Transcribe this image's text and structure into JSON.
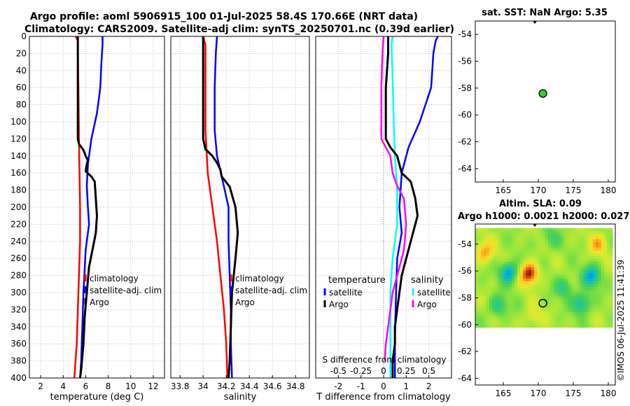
{
  "title_line1": "Argo profile: aoml 5906915_100 01-Jul-2025 58.4S 170.66E (NRT data)",
  "title_line2": "Climatology: CARS2009. Satellite-adj clim: synTS_20250701.nc (0.39d earlier)",
  "timestamp": "©IMOS 06-Jul-2025 11:41:39",
  "colors": {
    "climatology": "#ff0000",
    "satellite": "#0000ff",
    "argo": "#000000",
    "sat_salinity": "#00ffff",
    "argo_salinity": "#ff00ff",
    "argo_marker": "#33cc33"
  },
  "chart_data": [
    {
      "id": "temperature",
      "type": "line",
      "xlabel": "temperature (deg C)",
      "xlim": [
        1,
        13
      ],
      "xticks": [
        2,
        4,
        6,
        8,
        10,
        12
      ],
      "xtick_labels": [
        "2",
        "4",
        "6",
        "8",
        "10",
        "12"
      ],
      "ylim": [
        0,
        400
      ],
      "yticks": [
        0,
        20,
        40,
        60,
        80,
        100,
        120,
        140,
        160,
        180,
        200,
        220,
        240,
        260,
        280,
        300,
        320,
        340,
        360,
        380,
        400
      ],
      "ytick_labels": [
        "0",
        "20",
        "40",
        "60",
        "80",
        "100",
        "120",
        "140",
        "160",
        "180",
        "200",
        "220",
        "240",
        "260",
        "280",
        "300",
        "320",
        "340",
        "360",
        "380",
        "400"
      ],
      "grid": true,
      "legend": [
        "climatology",
        "satellite-adj. clim",
        "Argo"
      ],
      "series": [
        {
          "name": "climatology",
          "color": "#ff0000",
          "width": 2.5,
          "points": [
            [
              5.1,
              0
            ],
            [
              5.3,
              5
            ],
            [
              5.3,
              20
            ],
            [
              5.35,
              60
            ],
            [
              5.4,
              120
            ],
            [
              5.45,
              160
            ],
            [
              5.5,
              200
            ],
            [
              5.5,
              240
            ],
            [
              5.4,
              280
            ],
            [
              5.3,
              320
            ],
            [
              5.2,
              360
            ],
            [
              5.1,
              380
            ],
            [
              5.0,
              400
            ]
          ]
        },
        {
          "name": "satellite-adj. clim",
          "color": "#0000ff",
          "width": 2.5,
          "points": [
            [
              7.5,
              0
            ],
            [
              7.5,
              10
            ],
            [
              7.4,
              30
            ],
            [
              7.3,
              60
            ],
            [
              7.0,
              90
            ],
            [
              6.5,
              120
            ],
            [
              6.2,
              150
            ],
            [
              6.1,
              175
            ],
            [
              6.2,
              200
            ],
            [
              6.3,
              220
            ],
            [
              6.0,
              250
            ],
            [
              5.8,
              300
            ],
            [
              5.7,
              340
            ],
            [
              5.6,
              380
            ],
            [
              5.5,
              400
            ]
          ]
        },
        {
          "name": "Argo",
          "color": "#000000",
          "width": 3,
          "points": [
            [
              5.3,
              0
            ],
            [
              5.3,
              20
            ],
            [
              5.3,
              40
            ],
            [
              5.3,
              80
            ],
            [
              5.3,
              100
            ],
            [
              5.3,
              120
            ],
            [
              5.4,
              126
            ],
            [
              5.8,
              133
            ],
            [
              6.0,
              140
            ],
            [
              6.2,
              145
            ],
            [
              6.1,
              150
            ],
            [
              6.0,
              158
            ],
            [
              6.5,
              164
            ],
            [
              6.8,
              170
            ],
            [
              6.9,
              190
            ],
            [
              7.0,
              210
            ],
            [
              6.9,
              230
            ],
            [
              6.6,
              250
            ],
            [
              6.3,
              270
            ],
            [
              6.1,
              300
            ],
            [
              5.9,
              330
            ],
            [
              5.8,
              360
            ],
            [
              5.6,
              390
            ],
            [
              5.5,
              400
            ]
          ]
        }
      ]
    },
    {
      "id": "salinity",
      "type": "line",
      "xlabel": "salinity",
      "xlim": [
        33.72,
        34.92
      ],
      "xticks": [
        33.8,
        34.0,
        34.2,
        34.4,
        34.6,
        34.8
      ],
      "xtick_labels": [
        "33.8",
        "34",
        "34.2",
        "34.4",
        "34.6",
        "34.8"
      ],
      "ylim": [
        0,
        400
      ],
      "grid": true,
      "legend": [
        "climatology",
        "satellite-adj. clim",
        "Argo"
      ],
      "series": [
        {
          "name": "climatology",
          "color": "#ff0000",
          "width": 2.5,
          "points": [
            [
              34.0,
              0
            ],
            [
              34.02,
              10
            ],
            [
              34.02,
              60
            ],
            [
              34.02,
              110
            ],
            [
              34.04,
              160
            ],
            [
              34.08,
              200
            ],
            [
              34.12,
              240
            ],
            [
              34.15,
              280
            ],
            [
              34.18,
              320
            ],
            [
              34.2,
              360
            ],
            [
              34.21,
              400
            ]
          ]
        },
        {
          "name": "satellite-adj. clim",
          "color": "#0000ff",
          "width": 2.5,
          "points": [
            [
              34.12,
              0
            ],
            [
              34.11,
              20
            ],
            [
              34.1,
              60
            ],
            [
              34.1,
              110
            ],
            [
              34.12,
              140
            ],
            [
              34.17,
              170
            ],
            [
              34.22,
              200
            ],
            [
              34.22,
              240
            ],
            [
              34.23,
              280
            ],
            [
              34.24,
              320
            ],
            [
              34.24,
              360
            ],
            [
              34.25,
              400
            ]
          ]
        },
        {
          "name": "Argo",
          "color": "#000000",
          "width": 3,
          "points": [
            [
              34.0,
              0
            ],
            [
              34.0,
              20
            ],
            [
              34.0,
              80
            ],
            [
              34.0,
              120
            ],
            [
              34.02,
              132
            ],
            [
              34.08,
              140
            ],
            [
              34.12,
              148
            ],
            [
              34.15,
              156
            ],
            [
              34.16,
              164
            ],
            [
              34.23,
              176
            ],
            [
              34.28,
              200
            ],
            [
              34.3,
              230
            ],
            [
              34.28,
              260
            ],
            [
              34.25,
              300
            ],
            [
              34.24,
              340
            ],
            [
              34.23,
              380
            ],
            [
              34.22,
              400
            ]
          ]
        }
      ]
    },
    {
      "id": "difference",
      "type": "line",
      "xlabel": "T difference from climatology",
      "xlabel2": "S difference from climatology",
      "xlim": [
        -3,
        3
      ],
      "xticks": [
        -2,
        -1,
        0,
        1,
        2
      ],
      "xtick_labels": [
        "-2",
        "-1",
        "0",
        "1",
        "2"
      ],
      "xticks2": [
        -2,
        -1,
        0,
        1,
        2
      ],
      "xtick2_labels": [
        "-0.5",
        "-0.25",
        "0",
        "0.25",
        "0.5"
      ],
      "ylim": [
        0,
        400
      ],
      "grid": true,
      "legend_temperature": {
        "title": "temperature",
        "items": [
          "satellite",
          "Argo"
        ]
      },
      "legend_salinity": {
        "title": "salinity",
        "items": [
          "satellite",
          "Argo"
        ]
      },
      "series": [
        {
          "name": "T satellite",
          "color": "#0000ff",
          "width": 2.5,
          "points": [
            [
              2.4,
              0
            ],
            [
              2.3,
              5
            ],
            [
              2.2,
              20
            ],
            [
              2.1,
              60
            ],
            [
              1.6,
              100
            ],
            [
              1.1,
              130
            ],
            [
              0.8,
              160
            ],
            [
              0.7,
              200
            ],
            [
              0.8,
              230
            ],
            [
              0.6,
              260
            ],
            [
              0.55,
              300
            ],
            [
              0.5,
              350
            ],
            [
              0.5,
              400
            ]
          ]
        },
        {
          "name": "S satellite",
          "color": "#00ffff",
          "width": 2.5,
          "points": [
            [
              0.4,
              0
            ],
            [
              0.35,
              10
            ],
            [
              0.4,
              50
            ],
            [
              0.45,
              100
            ],
            [
              0.5,
              140
            ],
            [
              0.6,
              180
            ],
            [
              0.6,
              220
            ],
            [
              0.4,
              260
            ],
            [
              0.3,
              300
            ],
            [
              0.3,
              350
            ],
            [
              0.3,
              400
            ]
          ]
        },
        {
          "name": "S Argo",
          "color": "#ff00ff",
          "width": 2.5,
          "points": [
            [
              0,
              0
            ],
            [
              -0.05,
              20
            ],
            [
              -0.1,
              60
            ],
            [
              -0.1,
              100
            ],
            [
              -0.1,
              120
            ],
            [
              0.1,
              130
            ],
            [
              0.3,
              140
            ],
            [
              0.4,
              160
            ],
            [
              0.6,
              175
            ],
            [
              0.9,
              190
            ],
            [
              1.0,
              220
            ],
            [
              0.9,
              250
            ],
            [
              0.6,
              280
            ],
            [
              0.4,
              300
            ],
            [
              0.3,
              320
            ],
            [
              0.2,
              340
            ],
            [
              0.1,
              360
            ],
            [
              0.05,
              380
            ]
          ]
        },
        {
          "name": "T Argo",
          "color": "#000000",
          "width": 3,
          "points": [
            [
              0.2,
              0
            ],
            [
              0.2,
              20
            ],
            [
              0.1,
              60
            ],
            [
              0.1,
              100
            ],
            [
              0.1,
              120
            ],
            [
              0.3,
              130
            ],
            [
              0.6,
              140
            ],
            [
              0.7,
              150
            ],
            [
              0.8,
              160
            ],
            [
              1.2,
              170
            ],
            [
              1.4,
              190
            ],
            [
              1.5,
              210
            ],
            [
              1.3,
              230
            ],
            [
              1.0,
              260
            ],
            [
              0.8,
              280
            ],
            [
              0.7,
              300
            ],
            [
              0.6,
              320
            ],
            [
              0.5,
              340
            ],
            [
              0.5,
              360
            ],
            [
              0.4,
              380
            ],
            [
              0.4,
              400
            ]
          ]
        }
      ]
    },
    {
      "id": "sst_map",
      "type": "scatter",
      "title": "sat. SST: NaN Argo: 5.35",
      "xlim": [
        161,
        181
      ],
      "ylim": [
        -65,
        -53
      ],
      "xticks": [
        165,
        170,
        175,
        180
      ],
      "xtick_labels": [
        "165",
        "170",
        "175",
        "180"
      ],
      "yticks": [
        -54,
        -56,
        -58,
        -60,
        -62,
        -64
      ],
      "ytick_labels": [
        "-54",
        "-56",
        "-58",
        "-60",
        "-62",
        "-64"
      ],
      "points": [
        {
          "x": 170.66,
          "y": -58.4,
          "label": "Argo"
        }
      ]
    },
    {
      "id": "sla_map",
      "type": "heatmap",
      "title_line1": "Altim. SLA: 0.09",
      "title_line2": "Argo h1000: 0.0021 h2000: 0.027",
      "xlim": [
        161,
        181
      ],
      "ylim": [
        -64.5,
        -52.5
      ],
      "data_lat_range": [
        -60.2,
        -52.8
      ],
      "xticks": [
        165,
        170,
        175,
        180
      ],
      "xtick_labels": [
        "165",
        "170",
        "175",
        "180"
      ],
      "yticks": [
        -54,
        -56,
        -58,
        -60,
        -62,
        -64
      ],
      "ytick_labels": [
        "-54",
        "-56",
        "-58",
        "-60",
        "-62",
        "-64"
      ],
      "points": [
        {
          "x": 170.66,
          "y": -58.4,
          "label": "Argo"
        }
      ],
      "anomalies": [
        {
          "x": 168.7,
          "y": -56.2,
          "v": 1.0
        },
        {
          "x": 162.3,
          "y": -54.6,
          "v": 0.6
        },
        {
          "x": 178.6,
          "y": -54.0,
          "v": 0.5
        },
        {
          "x": 165.8,
          "y": -56.1,
          "v": -0.9
        },
        {
          "x": 177.6,
          "y": -56.4,
          "v": -0.8
        },
        {
          "x": 173.7,
          "y": -57.2,
          "v": -0.5
        },
        {
          "x": 176.2,
          "y": -58.4,
          "v": -0.75
        },
        {
          "x": 164.3,
          "y": -58.6,
          "v": -0.55
        },
        {
          "x": 171.8,
          "y": -53.6,
          "v": -0.35
        },
        {
          "x": 169.2,
          "y": -59.5,
          "v": 0.3
        }
      ]
    }
  ]
}
